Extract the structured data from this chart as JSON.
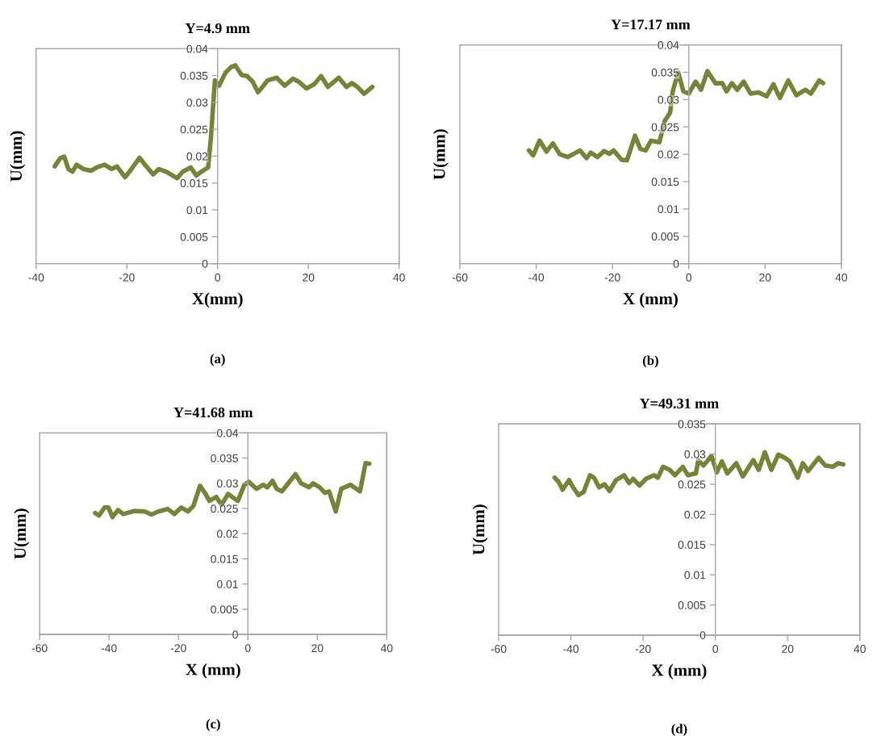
{
  "chart_data": [
    {
      "type": "line",
      "title": "Y=4.9 mm",
      "xlabel": "X(mm)",
      "ylabel": "U(mm)",
      "annotations": [
        "(a)"
      ],
      "xlim": [
        -40,
        40
      ],
      "xticks": [
        -40,
        -20,
        0,
        20,
        40
      ],
      "ylim": [
        0,
        0.04
      ],
      "yticks": [
        0,
        0.005,
        0.01,
        0.015,
        0.02,
        0.025,
        0.03,
        0.035,
        0.04
      ],
      "grid": false,
      "marker": "none",
      "series": [
        {
          "color": "#76843a",
          "x": [
            -35.9,
            -34.7,
            -33.8,
            -32.9,
            -32,
            -31.1,
            -29.6,
            -27.9,
            -26.4,
            -24.9,
            -23.4,
            -22.2,
            -20.4,
            -19,
            -17.2,
            -16,
            -14.2,
            -13,
            -11.3,
            -8.9,
            -7.7,
            -5.9,
            -4.7,
            -3.6,
            -2.1,
            -1.5,
            -0.6,
            0.3,
            1.8,
            3,
            3.9,
            5.3,
            6.5,
            7.7,
            8.9,
            10.1,
            11,
            13,
            14.8,
            16.6,
            17.8,
            19.6,
            21.3,
            22.8,
            24.3,
            26.7,
            28.4,
            29.6,
            30.8,
            32.3,
            34.1
          ],
          "values": [
            0.0181,
            0.0196,
            0.0199,
            0.0176,
            0.0171,
            0.0184,
            0.0176,
            0.0173,
            0.018,
            0.0184,
            0.0176,
            0.0181,
            0.0161,
            0.0176,
            0.0197,
            0.0184,
            0.0166,
            0.0176,
            0.0171,
            0.0159,
            0.0171,
            0.0179,
            0.0164,
            0.0171,
            0.0179,
            0.0231,
            0.0341,
            0.0331,
            0.0356,
            0.0366,
            0.0369,
            0.0351,
            0.0349,
            0.0339,
            0.0319,
            0.0331,
            0.0341,
            0.0346,
            0.0331,
            0.0344,
            0.0339,
            0.0326,
            0.0334,
            0.0349,
            0.0329,
            0.0346,
            0.0329,
            0.0336,
            0.0329,
            0.0316,
            0.0329
          ]
        }
      ]
    },
    {
      "type": "line",
      "title": "Y=17.17 mm",
      "xlabel": "X (mm)",
      "ylabel": "U(mm)",
      "annotations": [
        "(b)"
      ],
      "xlim": [
        -60,
        40
      ],
      "xticks": [
        -60,
        -40,
        -20,
        0,
        20,
        40
      ],
      "ylim": [
        0,
        0.04
      ],
      "yticks": [
        0,
        0.005,
        0.01,
        0.015,
        0.02,
        0.025,
        0.03,
        0.035,
        0.04
      ],
      "grid": false,
      "marker": "none",
      "series": [
        {
          "color": "#76843a",
          "x": [
            -41.9,
            -40.8,
            -39.1,
            -37.3,
            -35.6,
            -33.8,
            -31.7,
            -28.5,
            -26.8,
            -25.7,
            -23.9,
            -22.2,
            -20.8,
            -19.7,
            -17.6,
            -16.2,
            -14.1,
            -12.7,
            -11.3,
            -9.9,
            -7.7,
            -6.3,
            -4.9,
            -4.2,
            -2.8,
            -1.4,
            0,
            1.8,
            3.2,
            4.9,
            7,
            8.8,
            9.9,
            11.3,
            12.7,
            14.4,
            16.2,
            18.3,
            20.4,
            22.2,
            23.9,
            26.1,
            28.2,
            30.6,
            32,
            34.2,
            35.2
          ],
          "values": [
            0.0207,
            0.0198,
            0.0225,
            0.0205,
            0.022,
            0.02,
            0.0195,
            0.0207,
            0.0193,
            0.0203,
            0.0195,
            0.0206,
            0.0201,
            0.0207,
            0.019,
            0.0189,
            0.0234,
            0.021,
            0.0207,
            0.0225,
            0.0222,
            0.0261,
            0.0276,
            0.0315,
            0.035,
            0.0315,
            0.0311,
            0.0333,
            0.0318,
            0.0352,
            0.033,
            0.033,
            0.0315,
            0.033,
            0.0318,
            0.0333,
            0.0311,
            0.0313,
            0.0306,
            0.0328,
            0.0303,
            0.0335,
            0.0308,
            0.0318,
            0.0311,
            0.0335,
            0.033
          ]
        }
      ]
    },
    {
      "type": "line",
      "title": "Y=41.68 mm",
      "xlabel": "X (mm)",
      "ylabel": "U(mm)",
      "annotations": [
        "(c)"
      ],
      "xlim": [
        -60,
        40
      ],
      "xticks": [
        -60,
        -40,
        -20,
        0,
        20,
        40
      ],
      "ylim": [
        0,
        0.04
      ],
      "yticks": [
        0,
        0.005,
        0.01,
        0.015,
        0.02,
        0.025,
        0.03,
        0.035,
        0.04
      ],
      "grid": false,
      "marker": "none",
      "series": [
        {
          "color": "#76843a",
          "x": [
            -44,
            -42.9,
            -41.3,
            -40.2,
            -39,
            -37.4,
            -35.9,
            -32.8,
            -29.7,
            -27.8,
            -25.8,
            -23.1,
            -21.2,
            -19.2,
            -17.3,
            -15.7,
            -13.8,
            -12.2,
            -11.1,
            -9.1,
            -7.6,
            -5.7,
            -4.5,
            -2.9,
            -1,
            0.2,
            2.5,
            4.4,
            5.6,
            7.1,
            8.3,
            9.8,
            13.7,
            15.3,
            17.6,
            18.8,
            20.7,
            22.2,
            23.4,
            25.3,
            26.9,
            29.6,
            32.3,
            33.9,
            35
          ],
          "values": [
            0.0241,
            0.0236,
            0.0252,
            0.0252,
            0.0233,
            0.0247,
            0.0239,
            0.0245,
            0.0244,
            0.0238,
            0.0244,
            0.0249,
            0.0239,
            0.0252,
            0.0244,
            0.0255,
            0.0295,
            0.0279,
            0.0265,
            0.0273,
            0.0257,
            0.0279,
            0.0273,
            0.0265,
            0.0297,
            0.0303,
            0.0289,
            0.0297,
            0.0292,
            0.0305,
            0.0289,
            0.0284,
            0.0318,
            0.03,
            0.0292,
            0.03,
            0.0292,
            0.0281,
            0.0284,
            0.0244,
            0.0289,
            0.0297,
            0.0284,
            0.034,
            0.0339
          ]
        }
      ]
    },
    {
      "type": "line",
      "title": "Y=49.31 mm",
      "xlabel": "X (mm)",
      "ylabel": "U(mm)",
      "annotations": [
        "(d)"
      ],
      "xlim": [
        -60,
        40
      ],
      "xticks": [
        -60,
        -40,
        -20,
        0,
        20,
        40
      ],
      "ylim": [
        0,
        0.035
      ],
      "yticks": [
        0,
        0.005,
        0.01,
        0.015,
        0.02,
        0.025,
        0.03,
        0.035
      ],
      "grid": false,
      "marker": "none",
      "series": [
        {
          "color": "#76843a",
          "x": [
            -44.5,
            -43.4,
            -42.3,
            -40.5,
            -39.4,
            -37.9,
            -36.5,
            -34.7,
            -33.6,
            -32.2,
            -30.7,
            -29.3,
            -27.5,
            -25.3,
            -23.9,
            -22.8,
            -21,
            -19.2,
            -17,
            -15.9,
            -14.5,
            -12.7,
            -11.2,
            -9,
            -7.6,
            -5.4,
            -4.7,
            -3.3,
            -1.1,
            0.4,
            1.8,
            3.3,
            5.8,
            7.6,
            10.5,
            12,
            13.7,
            15.5,
            17.4,
            19.2,
            20.6,
            22.8,
            24.2,
            25.7,
            28.6,
            30.4,
            32.5,
            34,
            35.4
          ],
          "values": [
            0.0261,
            0.0254,
            0.0241,
            0.0257,
            0.0245,
            0.0232,
            0.0237,
            0.0265,
            0.0261,
            0.0245,
            0.025,
            0.0239,
            0.0257,
            0.0265,
            0.0252,
            0.0259,
            0.0248,
            0.0259,
            0.0265,
            0.0261,
            0.0279,
            0.0274,
            0.0265,
            0.0279,
            0.0265,
            0.0268,
            0.029,
            0.0281,
            0.0297,
            0.027,
            0.0288,
            0.0268,
            0.0285,
            0.0263,
            0.029,
            0.0274,
            0.0303,
            0.0274,
            0.0299,
            0.0294,
            0.0288,
            0.0261,
            0.0285,
            0.0272,
            0.0294,
            0.0281,
            0.0279,
            0.0285,
            0.0283
          ]
        }
      ]
    }
  ]
}
